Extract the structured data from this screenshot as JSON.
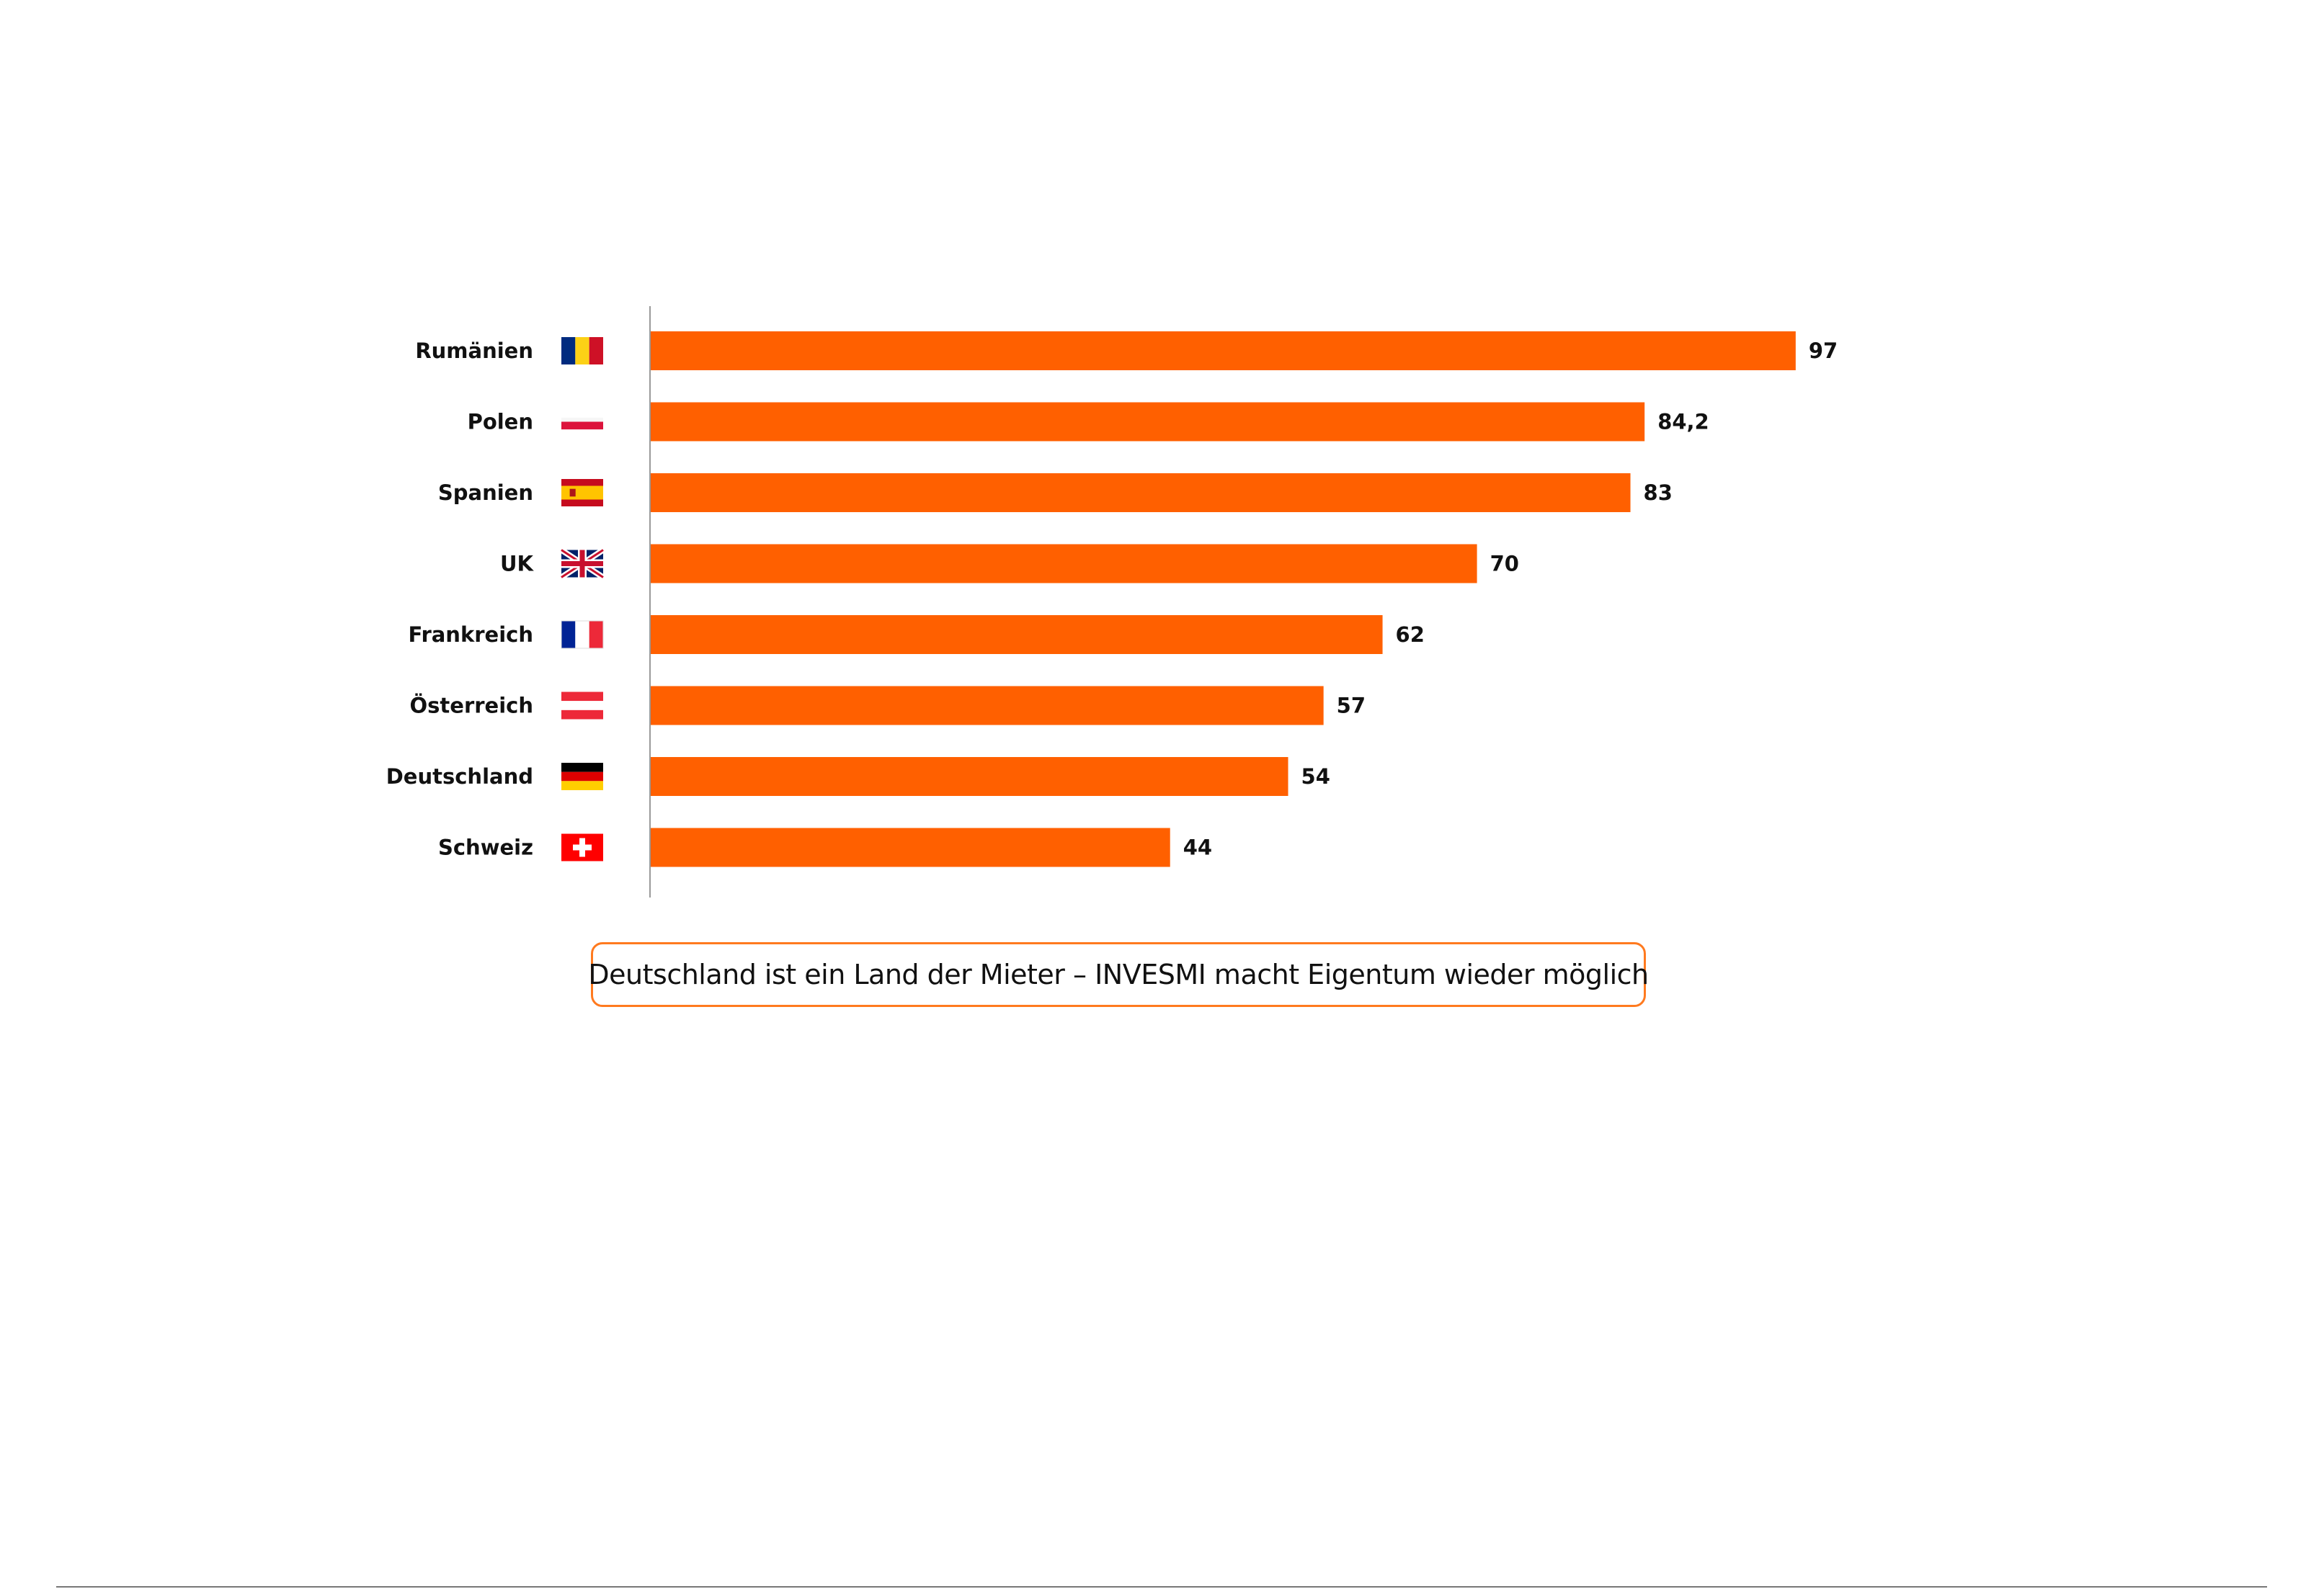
{
  "chart_data": {
    "type": "bar",
    "orientation": "horizontal",
    "categories": [
      "Rumänien",
      "Polen",
      "Spanien",
      "UK",
      "Frankreich",
      "Österreich",
      "Deutschland",
      "Schweiz"
    ],
    "value_labels": [
      "97",
      "84,2",
      "83",
      "70",
      "62",
      "57",
      "54",
      "44"
    ],
    "values": [
      97,
      84.2,
      83,
      70,
      62,
      57,
      54,
      44
    ],
    "flags": [
      "romania-flag-icon",
      "poland-flag-icon",
      "spain-flag-icon",
      "uk-flag-icon",
      "france-flag-icon",
      "austria-flag-icon",
      "germany-flag-icon",
      "switzerland-flag-icon"
    ],
    "bar_color": "#ff6000",
    "grid": false,
    "legend": "none"
  },
  "caption": {
    "text": "Deutschland ist ein Land der Mieter – INVESMI macht Eigentum wieder möglich",
    "border_color": "#ff7a1f"
  }
}
